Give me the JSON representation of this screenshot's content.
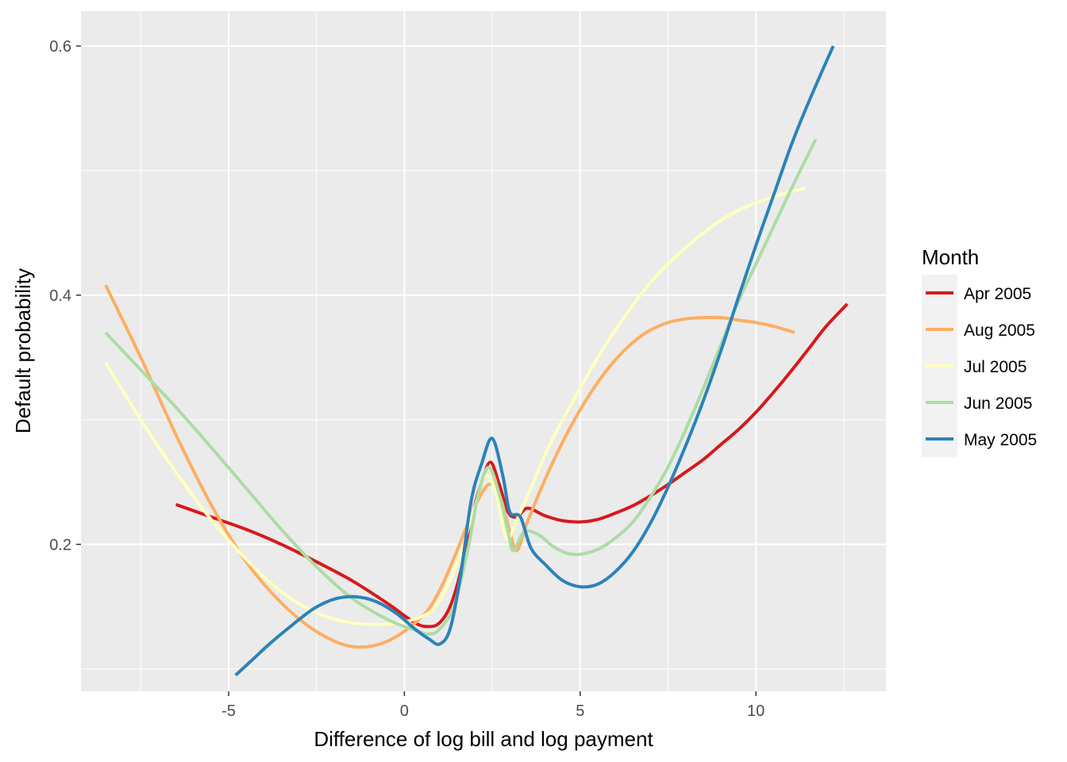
{
  "chart_data": {
    "type": "line",
    "xlabel": "Difference of log bill and log payment",
    "ylabel": "Default probability",
    "xlim": [
      -9.2,
      13.7
    ],
    "ylim": [
      0.082,
      0.628
    ],
    "x_ticks": [
      -5,
      0,
      5,
      10
    ],
    "x_tick_labels": [
      "-5",
      "0",
      "5",
      "10"
    ],
    "y_ticks": [
      0.2,
      0.4,
      0.6
    ],
    "y_tick_labels": [
      "0.2",
      "0.4",
      "0.6"
    ],
    "grid": true,
    "legend": {
      "title": "Month",
      "position": "right"
    },
    "series": [
      {
        "name": "Apr 2005",
        "color": "#d7191c",
        "x": [
          -6.5,
          -5.5,
          -4.5,
          -3.5,
          -2.5,
          -1.5,
          -0.5,
          0.3,
          0.7,
          1.0,
          1.3,
          1.6,
          1.9,
          2.2,
          2.45,
          2.7,
          2.95,
          3.2,
          3.5,
          4.0,
          4.5,
          5.0,
          5.5,
          6.0,
          6.5,
          7.0,
          7.5,
          8.0,
          8.5,
          9.0,
          9.5,
          10.0,
          10.5,
          11.0,
          11.5,
          12.0,
          12.6
        ],
        "y": [
          0.232,
          0.222,
          0.212,
          0.2,
          0.186,
          0.171,
          0.153,
          0.137,
          0.134,
          0.137,
          0.15,
          0.178,
          0.22,
          0.25,
          0.266,
          0.248,
          0.226,
          0.222,
          0.229,
          0.223,
          0.219,
          0.218,
          0.22,
          0.225,
          0.231,
          0.239,
          0.248,
          0.258,
          0.268,
          0.28,
          0.292,
          0.306,
          0.322,
          0.339,
          0.357,
          0.375,
          0.393
        ]
      },
      {
        "name": "Aug 2005",
        "color": "#fdae61",
        "x": [
          -8.5,
          -7.5,
          -6.5,
          -5.5,
          -4.5,
          -3.5,
          -2.5,
          -1.5,
          -0.5,
          0.5,
          1.0,
          1.5,
          2.0,
          2.4,
          2.7,
          3.0,
          3.2,
          3.5,
          4.0,
          4.5,
          5.0,
          5.5,
          6.0,
          6.5,
          7.0,
          7.5,
          8.0,
          8.5,
          9.0,
          9.5,
          10.0,
          10.5,
          11.1
        ],
        "y": [
          0.408,
          0.35,
          0.288,
          0.232,
          0.186,
          0.153,
          0.13,
          0.118,
          0.122,
          0.142,
          0.163,
          0.195,
          0.23,
          0.248,
          0.24,
          0.21,
          0.195,
          0.218,
          0.252,
          0.282,
          0.308,
          0.33,
          0.348,
          0.362,
          0.372,
          0.378,
          0.381,
          0.382,
          0.382,
          0.38,
          0.378,
          0.375,
          0.37
        ]
      },
      {
        "name": "Jul 2005",
        "color": "#ffffbf",
        "x": [
          -8.5,
          -7.5,
          -6.5,
          -5.5,
          -4.5,
          -3.5,
          -2.5,
          -1.5,
          -0.5,
          0.5,
          1.0,
          1.5,
          2.0,
          2.3,
          2.6,
          2.9,
          3.2,
          3.6,
          4.0,
          4.5,
          5.0,
          5.5,
          6.0,
          6.5,
          7.0,
          7.5,
          8.0,
          8.5,
          9.0,
          9.5,
          10.0,
          10.5,
          11.0,
          11.4
        ],
        "y": [
          0.346,
          0.3,
          0.258,
          0.22,
          0.188,
          0.162,
          0.145,
          0.137,
          0.136,
          0.142,
          0.155,
          0.185,
          0.23,
          0.255,
          0.242,
          0.205,
          0.22,
          0.245,
          0.272,
          0.3,
          0.325,
          0.35,
          0.372,
          0.392,
          0.41,
          0.425,
          0.438,
          0.45,
          0.46,
          0.468,
          0.474,
          0.479,
          0.483,
          0.486
        ]
      },
      {
        "name": "Jun 2005",
        "color": "#abdda4",
        "x": [
          -8.5,
          -7.5,
          -6.5,
          -5.5,
          -4.5,
          -3.5,
          -2.5,
          -1.5,
          -0.5,
          0.3,
          0.7,
          1.0,
          1.4,
          1.8,
          2.1,
          2.4,
          2.7,
          2.95,
          3.1,
          3.4,
          3.8,
          4.2,
          4.6,
          5.0,
          5.5,
          6.0,
          6.5,
          7.0,
          7.5,
          8.0,
          8.5,
          9.0,
          9.5,
          10.0,
          10.5,
          11.0,
          11.7
        ],
        "y": [
          0.37,
          0.34,
          0.31,
          0.278,
          0.245,
          0.212,
          0.182,
          0.157,
          0.14,
          0.131,
          0.128,
          0.132,
          0.15,
          0.195,
          0.24,
          0.262,
          0.24,
          0.21,
          0.195,
          0.21,
          0.208,
          0.199,
          0.193,
          0.192,
          0.196,
          0.205,
          0.218,
          0.238,
          0.262,
          0.292,
          0.325,
          0.36,
          0.395,
          0.425,
          0.455,
          0.485,
          0.525
        ]
      },
      {
        "name": "May 2005",
        "color": "#2b83ba",
        "x": [
          -4.8,
          -4.3,
          -3.8,
          -3.2,
          -2.6,
          -2.0,
          -1.4,
          -0.8,
          -0.2,
          0.3,
          0.7,
          1.0,
          1.3,
          1.6,
          1.9,
          2.2,
          2.5,
          2.8,
          3.0,
          3.3,
          3.6,
          4.0,
          4.5,
          5.0,
          5.5,
          6.0,
          6.5,
          7.0,
          7.5,
          8.0,
          8.5,
          9.0,
          9.5,
          10.0,
          10.5,
          11.0,
          11.5,
          12.2
        ],
        "y": [
          0.095,
          0.108,
          0.121,
          0.135,
          0.148,
          0.156,
          0.158,
          0.154,
          0.144,
          0.132,
          0.124,
          0.12,
          0.132,
          0.175,
          0.235,
          0.265,
          0.285,
          0.255,
          0.226,
          0.222,
          0.197,
          0.184,
          0.171,
          0.166,
          0.168,
          0.178,
          0.194,
          0.217,
          0.246,
          0.279,
          0.315,
          0.355,
          0.398,
          0.44,
          0.48,
          0.52,
          0.555,
          0.6
        ]
      }
    ]
  }
}
